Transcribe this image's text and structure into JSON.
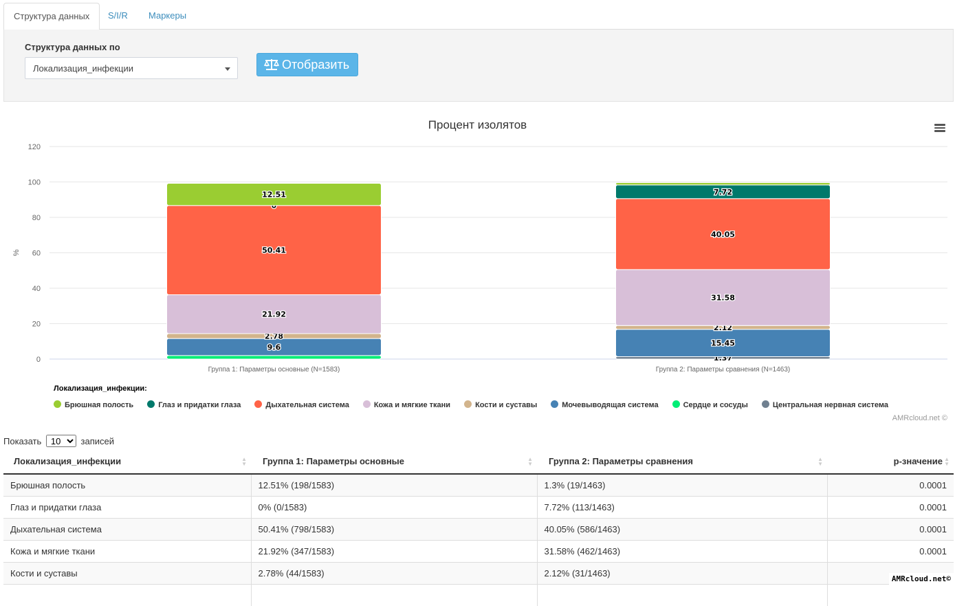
{
  "tabs": [
    {
      "label": "Структура данных",
      "active": true
    },
    {
      "label": "S/I/R",
      "active": false
    },
    {
      "label": "Маркеры",
      "active": false
    }
  ],
  "filter": {
    "label": "Структура данных по",
    "select_value": "Локализация_инфекции",
    "button_label": "Отобразить",
    "button_icon": "balance-scale-icon"
  },
  "chart_data": {
    "type": "bar",
    "stacked": true,
    "title": "Процент изолятов",
    "ylabel": "%",
    "xlabel": "",
    "ylim": [
      0,
      120
    ],
    "yticks": [
      0,
      20,
      40,
      60,
      80,
      100,
      120
    ],
    "categories": [
      "Группа 1: Параметры основные (N=1583)",
      "Группа 2: Параметры сравнения (N=1463)"
    ],
    "legend_title": "Локализация_инфекции:",
    "legend_placement": "bottom",
    "grid": true,
    "series": [
      {
        "name": "Брюшная полость",
        "color": "#9acd32",
        "values": [
          12.51,
          1.3
        ],
        "labels": [
          "12.51",
          ""
        ]
      },
      {
        "name": "Глаз и придатки глаза",
        "color": "#00796b",
        "values": [
          0,
          7.72
        ],
        "labels": [
          "0",
          "7.72"
        ]
      },
      {
        "name": "Дыхательная система",
        "color": "#ff6347",
        "values": [
          50.41,
          40.05
        ],
        "labels": [
          "50.41",
          "40.05"
        ]
      },
      {
        "name": "Кожа и мягкие ткани",
        "color": "#d8bfd8",
        "values": [
          21.92,
          31.58
        ],
        "labels": [
          "21.92",
          "31.58"
        ]
      },
      {
        "name": "Кости и суставы",
        "color": "#d2b48c",
        "values": [
          2.78,
          2.12
        ],
        "labels": [
          "2.78",
          "2.12"
        ]
      },
      {
        "name": "Мочевыводящая система",
        "color": "#4682b4",
        "values": [
          9.6,
          15.45
        ],
        "labels": [
          "9.6",
          "15.45"
        ]
      },
      {
        "name": "Сердце и сосуды",
        "color": "#00ee76",
        "values": [
          2.0,
          0
        ],
        "labels": [
          "",
          ""
        ]
      },
      {
        "name": "Центральная нервная система",
        "color": "#708090",
        "values": [
          0,
          1.37
        ],
        "labels": [
          "",
          "1.37"
        ]
      }
    ],
    "credit": "AMRcloud.net ©"
  },
  "table": {
    "length_prefix": "Показать",
    "length_value": "10",
    "length_suffix": "записей",
    "headers": [
      "Локализация_инфекции",
      "Группа 1: Параметры основные",
      "Группа 2: Параметры сравнения",
      "p-значение"
    ],
    "rows": [
      [
        "Брюшная полость",
        "12.51% (198/1583)",
        "1.3% (19/1463)",
        "0.0001"
      ],
      [
        "Глаз и придатки глаза",
        "0% (0/1583)",
        "7.72% (113/1463)",
        "0.0001"
      ],
      [
        "Дыхательная система",
        "50.41% (798/1583)",
        "40.05% (586/1463)",
        "0.0001"
      ],
      [
        "Кожа и мягкие ткани",
        "21.92% (347/1583)",
        "31.58% (462/1463)",
        "0.0001"
      ],
      [
        "Кости и суставы",
        "2.78% (44/1583)",
        "2.12% (31/1463)",
        ""
      ],
      [
        "",
        "",
        "",
        ""
      ]
    ]
  },
  "corner_credit": "AMRcloud.net©"
}
